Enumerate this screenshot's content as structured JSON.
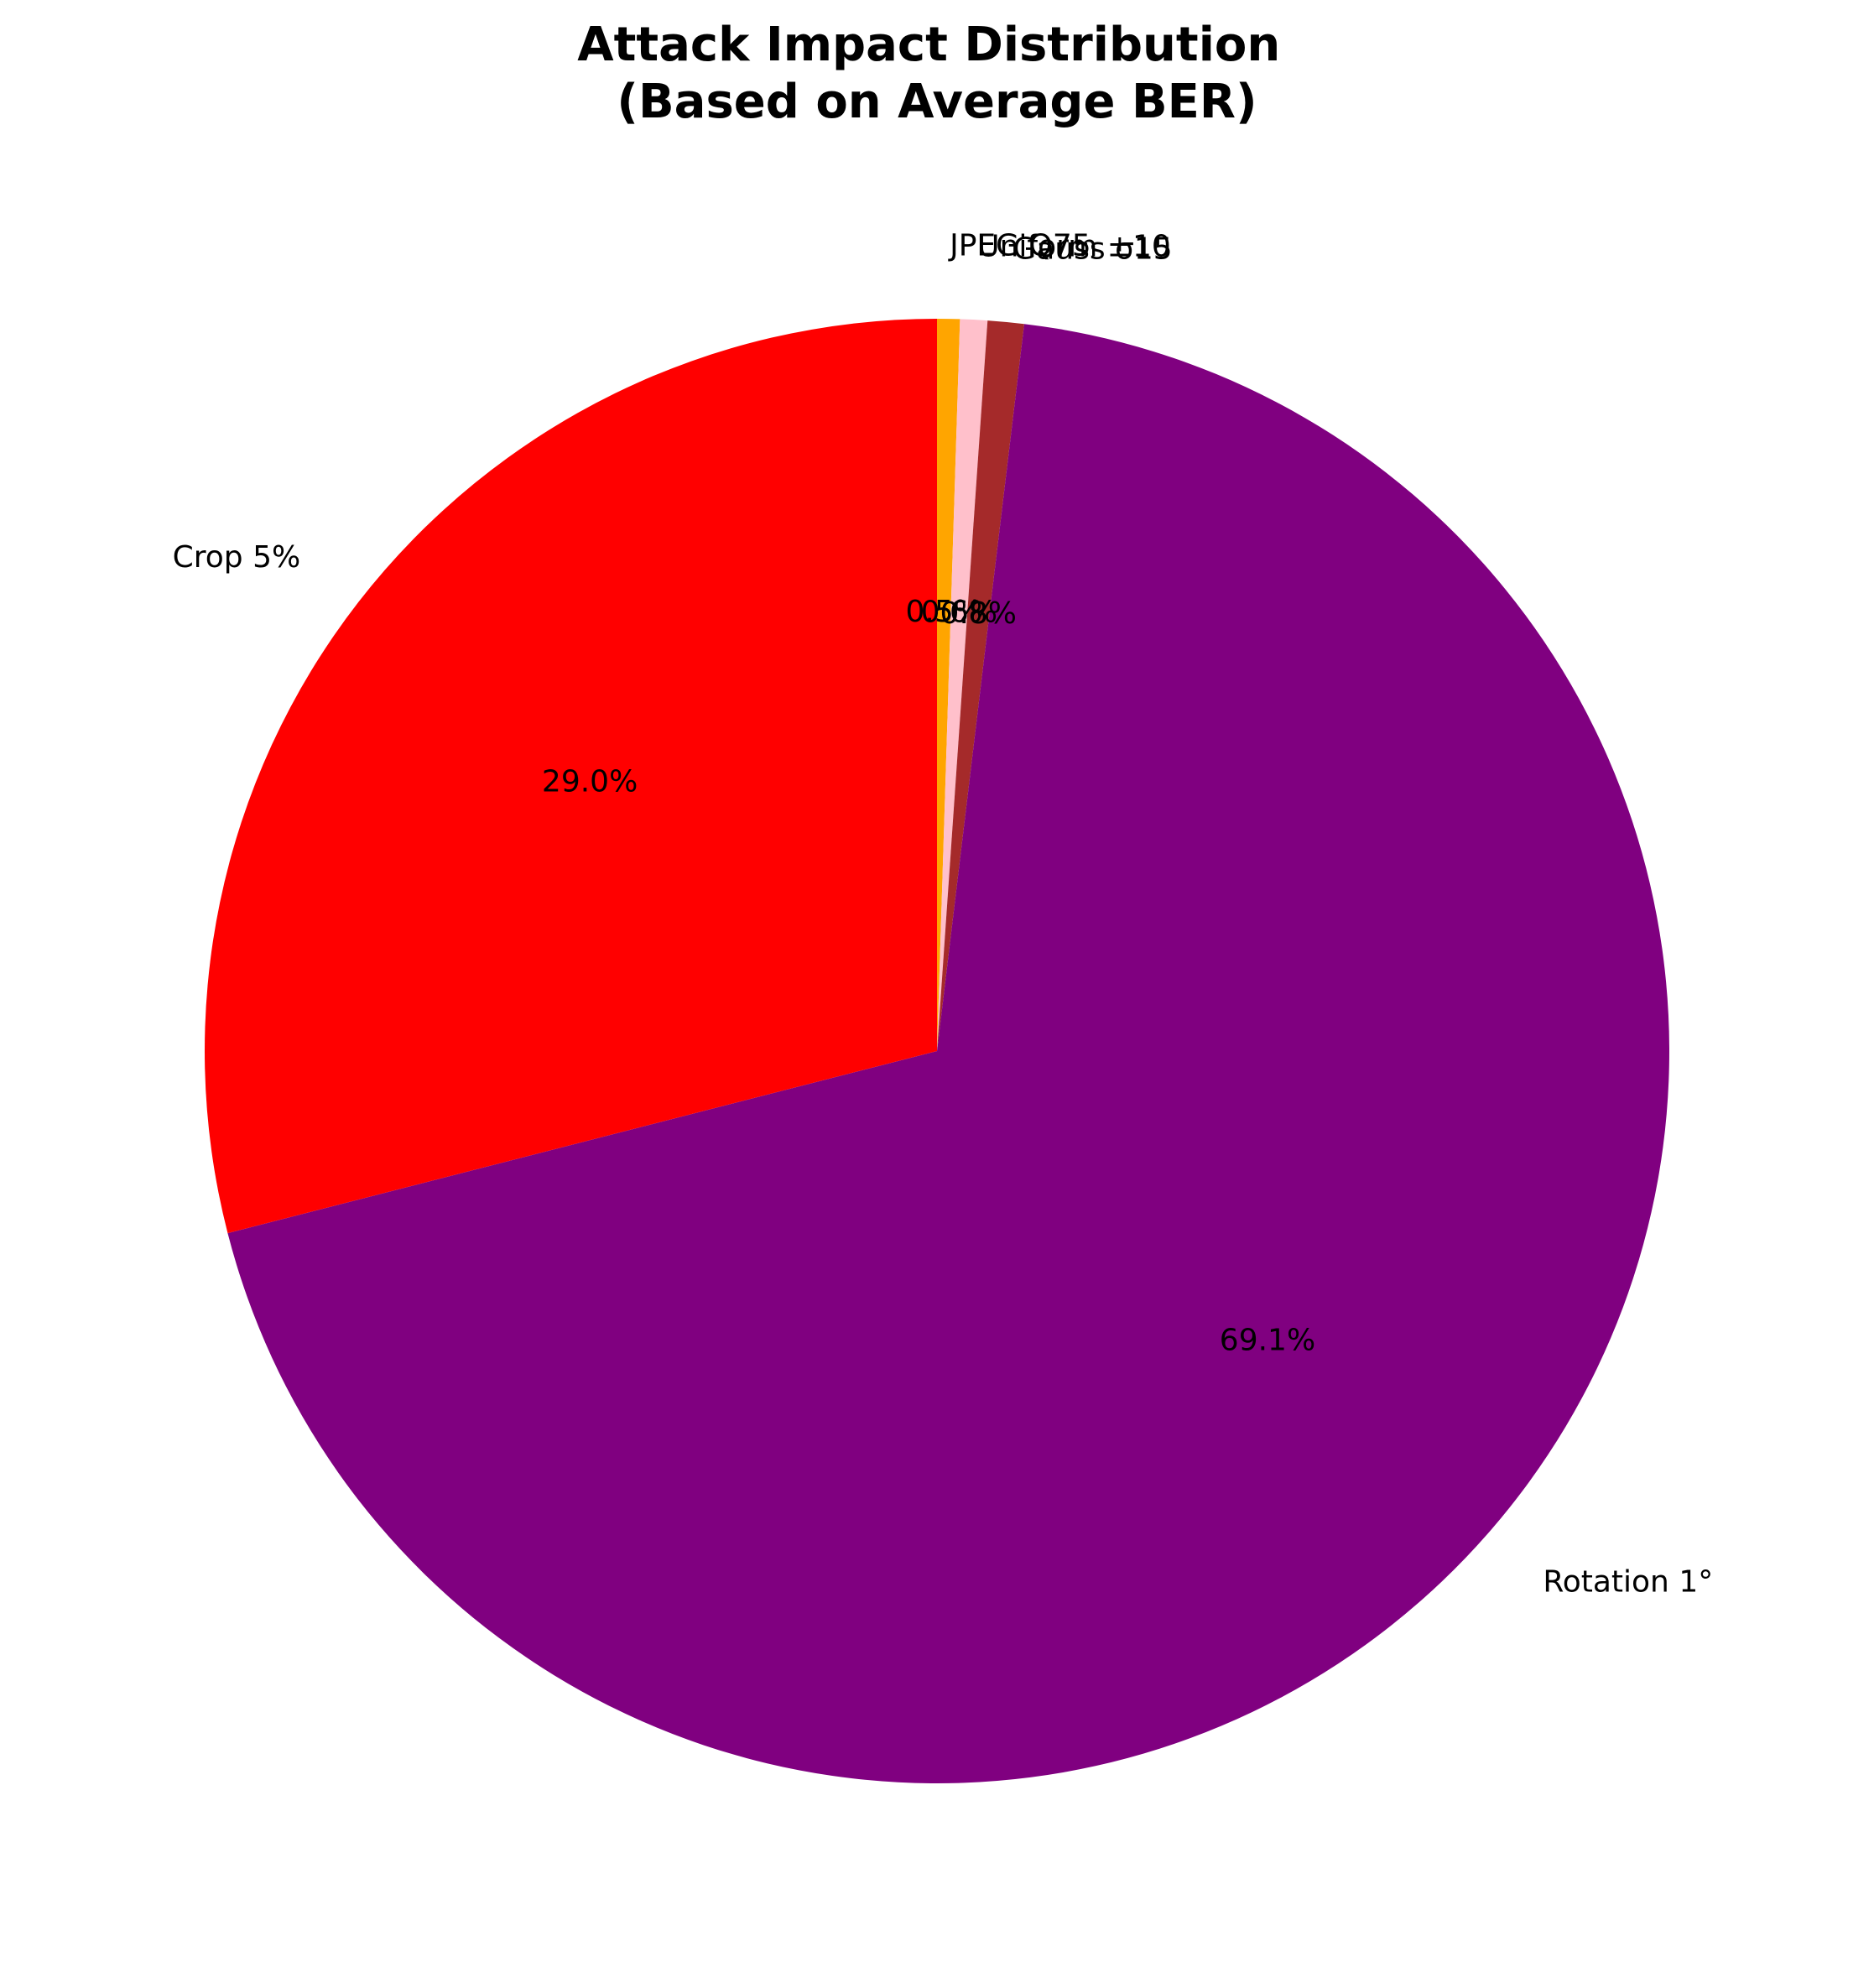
{
  "chart_data": {
    "type": "pie",
    "title": "Attack Impact Distribution\n(Based on Average BER)",
    "title_lines": [
      "Attack Impact Distribution",
      "(Based on Average BER)"
    ],
    "start_angle_deg": 90,
    "direction": "clockwise",
    "slices": [
      {
        "label": "JPEG Q75",
        "value": 0.5,
        "pct_label": "0.5%",
        "color": "#FFA500"
      },
      {
        "label": "Uniform ±10",
        "value": 0.6,
        "pct_label": "0.6%",
        "color": "#FFC0CB"
      },
      {
        "label": "Gauss σ15",
        "value": 0.8,
        "pct_label": "0.8%",
        "color": "#A52A2A"
      },
      {
        "label": "Rotation 1°",
        "value": 69.1,
        "pct_label": "69.1%",
        "color": "#800080"
      },
      {
        "label": "Crop 5%",
        "value": 29.0,
        "pct_label": "29.0%",
        "color": "#FF0000"
      }
    ]
  }
}
